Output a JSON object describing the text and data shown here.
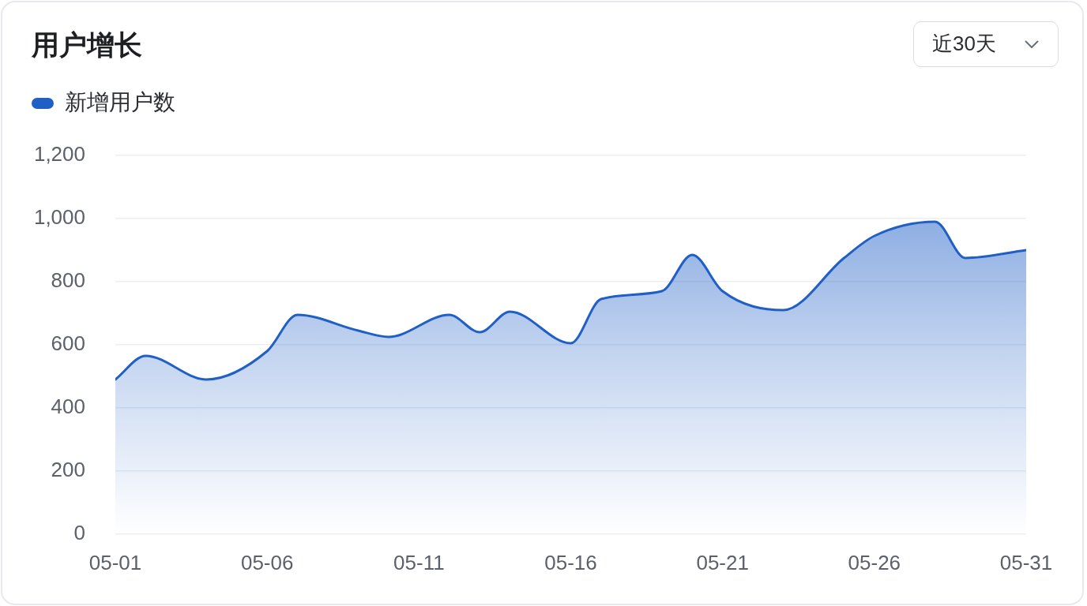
{
  "chart_data": {
    "type": "area",
    "title": "用户增长",
    "annotations": [
      "近30天"
    ],
    "x": [
      "--05-01",
      "--05-02",
      "--05-04",
      "--05-06",
      "--05-07",
      "--05-09",
      "--05-10",
      "--05-12",
      "--05-13",
      "--05-14",
      "--05-16",
      "--05-17",
      "--05-19",
      "--05-20",
      "--05-21",
      "--05-23",
      "--05-25",
      "--05-26",
      "--05-28",
      "--05-29",
      "--05-31"
    ],
    "series": [
      {
        "name": "新增用户数",
        "color": "#1f5fc6",
        "values": [
          490,
          565,
          490,
          580,
          695,
          645,
          625,
          695,
          640,
          705,
          605,
          745,
          770,
          885,
          770,
          710,
          875,
          945,
          990,
          875,
          900
        ]
      }
    ],
    "xlim": [
      "--05-01",
      "--05-31"
    ],
    "xticks": [
      {
        "value": "--05-01",
        "label": "05-01"
      },
      {
        "value": "--05-06",
        "label": "05-06"
      },
      {
        "value": "--05-11",
        "label": "05-11"
      },
      {
        "value": "--05-16",
        "label": "05-16"
      },
      {
        "value": "--05-21",
        "label": "05-21"
      },
      {
        "value": "--05-26",
        "label": "05-26"
      },
      {
        "value": "--05-31",
        "label": "05-31"
      }
    ],
    "ylim": [
      0,
      1200
    ],
    "yticks": [
      0,
      200,
      400,
      600,
      800,
      {
        "value": 1000,
        "label": "1,000"
      },
      {
        "value": 1200,
        "label": "1,200"
      }
    ],
    "grid": "y",
    "legend": "top left",
    "marker": "none"
  }
}
